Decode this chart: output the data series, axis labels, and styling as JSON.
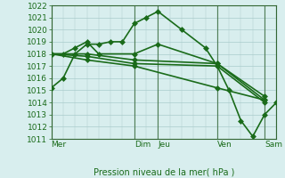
{
  "background_color": "#d8eeee",
  "grid_color": "#aacccc",
  "line_color": "#1a6b1a",
  "marker": "D",
  "markersize": 3,
  "linewidth": 1.2,
  "xlabel": "Pression niveau de la mer( hPa )",
  "ylim": [
    1011,
    1022
  ],
  "yticks": [
    1011,
    1012,
    1013,
    1014,
    1015,
    1016,
    1017,
    1018,
    1019,
    1020,
    1021,
    1022
  ],
  "x_day_labels": [
    "Mer",
    "Dim",
    "Jeu",
    "Ven",
    "Sam"
  ],
  "x_day_positions": [
    0,
    3.5,
    4.5,
    7,
    9
  ],
  "xmin": 0,
  "xmax": 9.5,
  "lines": [
    {
      "x": [
        0,
        0.5,
        1.0,
        1.5,
        2.0,
        2.5,
        3.0,
        3.5,
        4.0,
        4.5,
        5.5,
        6.5,
        7.0,
        7.5,
        8.0,
        8.5,
        9.0,
        9.5
      ],
      "y": [
        1015.2,
        1016.0,
        1018.0,
        1018.8,
        1018.8,
        1019.0,
        1019.0,
        1020.5,
        1021.0,
        1021.5,
        1020.0,
        1018.5,
        1017.0,
        1015.0,
        1012.5,
        1011.2,
        1013.0,
        1014.0
      ]
    },
    {
      "x": [
        0,
        0.5,
        1.0,
        1.5,
        2.0,
        3.5,
        4.5,
        7.0,
        9.0
      ],
      "y": [
        1018.0,
        1018.0,
        1018.5,
        1019.0,
        1018.0,
        1018.0,
        1018.8,
        1017.2,
        1014.5
      ]
    },
    {
      "x": [
        0,
        1.5,
        3.5,
        7.0,
        9.0
      ],
      "y": [
        1018.0,
        1018.0,
        1017.5,
        1017.2,
        1014.2
      ]
    },
    {
      "x": [
        0,
        1.5,
        3.5,
        7.0,
        9.0
      ],
      "y": [
        1018.0,
        1017.8,
        1017.2,
        1017.0,
        1014.0
      ]
    },
    {
      "x": [
        0,
        1.5,
        3.5,
        7.0,
        9.0
      ],
      "y": [
        1018.0,
        1017.5,
        1017.0,
        1015.2,
        1014.2
      ]
    }
  ]
}
